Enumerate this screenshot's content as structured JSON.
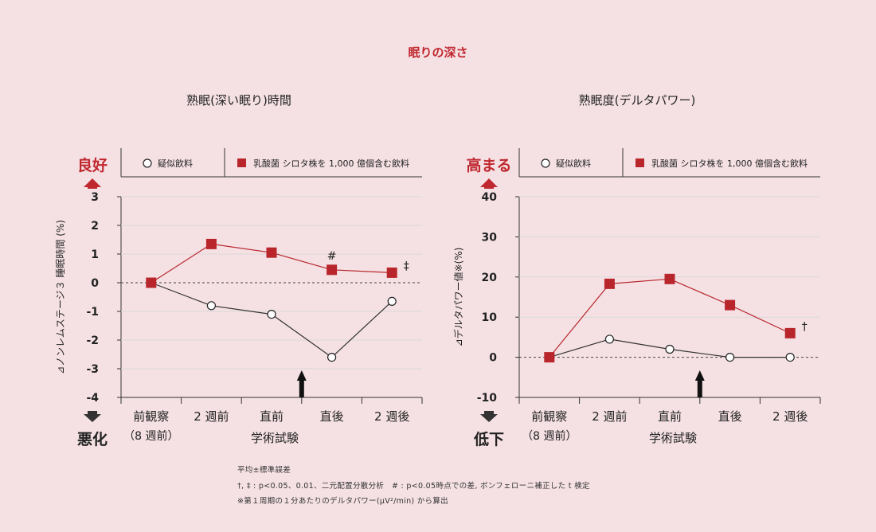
{
  "title": "眠りの深さ",
  "legend": {
    "open": "疑似飲料",
    "filled": "乳酸菌 シロタ株を 1,000 億個含む飲料"
  },
  "colors": {
    "red": "#b8262c",
    "accent": "#c0282f",
    "line_black": "#333333",
    "grid": "#d9d9d9",
    "background": "#f5e1e4"
  },
  "x_categories": [
    "前観察",
    "2 週前",
    "直前",
    "直後",
    "2 週後"
  ],
  "x_sub_label": "（8 週前）",
  "xlabel": "学術試験",
  "chart_data": [
    {
      "type": "line",
      "title": "熟眠(深い眠り)時間",
      "ylabel": "⊿ノンレムステージ３ 睡眠時間 (%)",
      "ylim": [
        -4,
        3
      ],
      "yticks": [
        "3",
        "2",
        "1",
        "0",
        "-1",
        "-2",
        "-3",
        "-4"
      ],
      "top_label": "良好",
      "bottom_label": "悪化",
      "categories": [
        "前観察",
        "2 週前",
        "直前",
        "直後",
        "2 週後"
      ],
      "series": [
        {
          "name": "疑似飲料",
          "marker": "open-circle",
          "values": [
            0,
            -0.8,
            -1.1,
            -2.6,
            -0.65
          ]
        },
        {
          "name": "乳酸菌 シロタ株を 1,000 億個含む飲料",
          "marker": "filled-square",
          "values": [
            0,
            1.35,
            1.05,
            0.45,
            0.35
          ]
        }
      ],
      "annotations": [
        {
          "category": "直後",
          "text": "#"
        },
        {
          "category": "2 週後",
          "text": "‡"
        }
      ],
      "arrow_category_gap": "直前-直後"
    },
    {
      "type": "line",
      "title": "熟眠度(デルタパワー)",
      "ylabel": "⊿デルタパワー値※(%)",
      "ylim": [
        -10,
        40
      ],
      "yticks": [
        "40",
        "30",
        "20",
        "10",
        "0",
        "-10"
      ],
      "top_label": "高まる",
      "bottom_label": "低下",
      "categories": [
        "前観察",
        "2 週前",
        "直前",
        "直後",
        "2 週後"
      ],
      "series": [
        {
          "name": "疑似飲料",
          "marker": "open-circle",
          "values": [
            0,
            4.5,
            2,
            0,
            0
          ]
        },
        {
          "name": "乳酸菌 シロタ株を 1,000 億個含む飲料",
          "marker": "filled-square",
          "values": [
            0,
            18.3,
            19.5,
            13,
            6
          ]
        }
      ],
      "annotations": [
        {
          "category": "2 週後",
          "text": "†"
        }
      ],
      "arrow_category_gap": "直前-直後"
    }
  ],
  "footnotes": [
    "平均±標準誤差",
    "†, ‡ : p<0.05、0.01、二元配置分散分析　# : p<0.05時点での差, ボンフェローニ補正した t 検定",
    "※第１周期の１分あたりのデルタパワー(μV²/min) から算出"
  ]
}
